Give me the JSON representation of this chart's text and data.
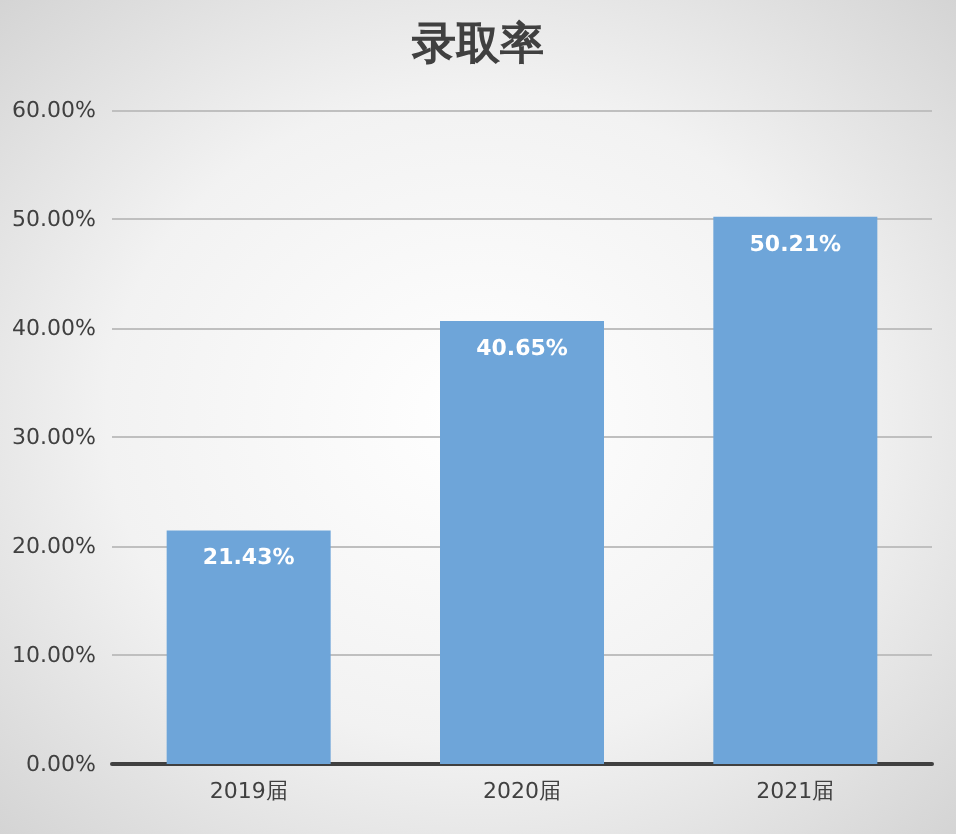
{
  "chart_data": {
    "type": "bar",
    "title": "录取率",
    "categories": [
      "2019届",
      "2020届",
      "2021届"
    ],
    "values": [
      21.43,
      40.65,
      50.21
    ],
    "color": "#6ea5d9",
    "value_labels": [
      "21.43%",
      "40.65%",
      "50.21%"
    ],
    "ylim": [
      0,
      60
    ],
    "yticks": [
      {
        "value": 0,
        "label": "0.00%"
      },
      {
        "value": 10,
        "label": "10.00%"
      },
      {
        "value": 20,
        "label": "20.00%"
      },
      {
        "value": 30,
        "label": "30.00%"
      },
      {
        "value": 40,
        "label": "40.00%"
      },
      {
        "value": 50,
        "label": "50.00%"
      },
      {
        "value": 60,
        "label": "60.00%"
      }
    ],
    "grid": true
  }
}
